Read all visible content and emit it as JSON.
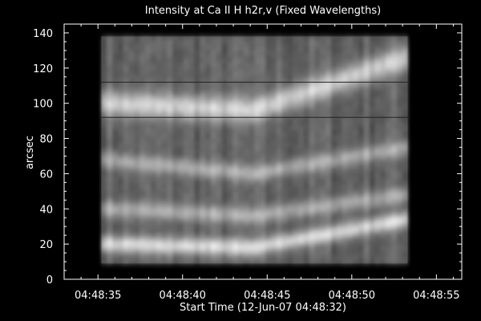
{
  "chart_data": {
    "type": "heatmap",
    "title": "Intensity at Ca II H h2r,v (Fixed Wavelengths)",
    "xlabel": "Start Time (12-Jun-07 04:48:32)",
    "ylabel": "arcsec",
    "x_ticks": [
      "04:48:35",
      "04:48:40",
      "04:48:45",
      "04:48:50",
      "04:48:55"
    ],
    "x_tick_seconds": [
      3,
      8,
      13,
      18,
      23
    ],
    "xlim_seconds": [
      1,
      24.5
    ],
    "data_x_range_seconds": [
      3.2,
      21.3
    ],
    "y_ticks": [
      0,
      20,
      40,
      60,
      80,
      100,
      120,
      140
    ],
    "ylim": [
      0,
      145
    ],
    "data_y_range": [
      9,
      138
    ],
    "colormap": "grayscale",
    "horizontal_lines_y": [
      112,
      92
    ],
    "bright_bands": [
      {
        "y_start": 20,
        "y_end": 26,
        "y_mid": 18,
        "y_stop": 34
      },
      {
        "y_start": 40,
        "y_end": 42,
        "y_mid": 36,
        "y_stop": 48
      },
      {
        "y_start": 68,
        "y_end": 72,
        "y_mid": 60,
        "y_stop": 75
      },
      {
        "y_start": 100,
        "y_end": 110,
        "y_mid": 96,
        "y_stop": 126
      }
    ]
  }
}
